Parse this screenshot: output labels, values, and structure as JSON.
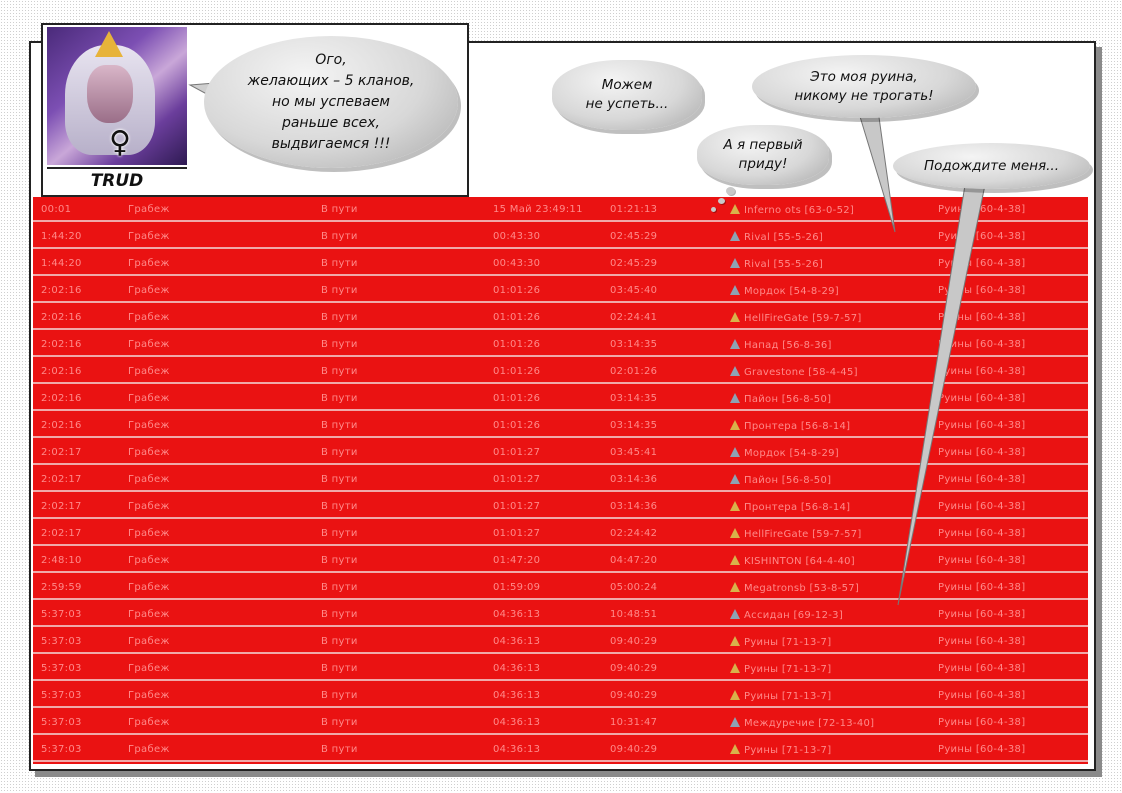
{
  "character": {
    "name": "TRUD",
    "gender_symbol": "♀"
  },
  "bubbles": {
    "main": [
      "Ого,",
      "желающих – 5 кланов,",
      "но мы успеваем",
      "раньше всех,",
      "выдвигаемся !!!"
    ],
    "cloud1": [
      "Можем",
      "не успеть..."
    ],
    "cloud2": [
      "А я первый",
      "приду!"
    ],
    "speech1": [
      "Это моя руина,",
      "никому не трогать!"
    ],
    "speech2": [
      "Подождите меня..."
    ]
  },
  "rows": [
    {
      "t": "00:01",
      "type": "Грабеж",
      "status": "В пути",
      "start": "15 Май 23:49:11",
      "arr": "01:21:13",
      "icon": "gold",
      "from": "Inferno ots [63-0-52]",
      "to": "Руины [60-4-38]"
    },
    {
      "t": "1:44:20",
      "type": "Грабеж",
      "status": "В пути",
      "start": "00:43:30",
      "arr": "02:45:29",
      "icon": "grey",
      "from": "Rival [55-5-26]",
      "to": "Руины [60-4-38]"
    },
    {
      "t": "1:44:20",
      "type": "Грабеж",
      "status": "В пути",
      "start": "00:43:30",
      "arr": "02:45:29",
      "icon": "grey",
      "from": "Rival [55-5-26]",
      "to": "Руины [60-4-38]"
    },
    {
      "t": "2:02:16",
      "type": "Грабеж",
      "status": "В пути",
      "start": "01:01:26",
      "arr": "03:45:40",
      "icon": "grey",
      "from": "Мордок [54-8-29]",
      "to": "Руины [60-4-38]"
    },
    {
      "t": "2:02:16",
      "type": "Грабеж",
      "status": "В пути",
      "start": "01:01:26",
      "arr": "02:24:41",
      "icon": "gold",
      "from": "HellFireGate [59-7-57]",
      "to": "Руины [60-4-38]"
    },
    {
      "t": "2:02:16",
      "type": "Грабеж",
      "status": "В пути",
      "start": "01:01:26",
      "arr": "03:14:35",
      "icon": "grey",
      "from": "Напад [56-8-36]",
      "to": "Руины [60-4-38]"
    },
    {
      "t": "2:02:16",
      "type": "Грабеж",
      "status": "В пути",
      "start": "01:01:26",
      "arr": "02:01:26",
      "icon": "grey",
      "from": "Gravestone [58-4-45]",
      "to": "Руины [60-4-38]"
    },
    {
      "t": "2:02:16",
      "type": "Грабеж",
      "status": "В пути",
      "start": "01:01:26",
      "arr": "03:14:35",
      "icon": "grey",
      "from": "Пайон [56-8-50]",
      "to": "Руины [60-4-38]"
    },
    {
      "t": "2:02:16",
      "type": "Грабеж",
      "status": "В пути",
      "start": "01:01:26",
      "arr": "03:14:35",
      "icon": "gold",
      "from": "Пронтера [56-8-14]",
      "to": "Руины [60-4-38]"
    },
    {
      "t": "2:02:17",
      "type": "Грабеж",
      "status": "В пути",
      "start": "01:01:27",
      "arr": "03:45:41",
      "icon": "grey",
      "from": "Мордок [54-8-29]",
      "to": "Руины [60-4-38]"
    },
    {
      "t": "2:02:17",
      "type": "Грабеж",
      "status": "В пути",
      "start": "01:01:27",
      "arr": "03:14:36",
      "icon": "grey",
      "from": "Пайон [56-8-50]",
      "to": "Руины [60-4-38]"
    },
    {
      "t": "2:02:17",
      "type": "Грабеж",
      "status": "В пути",
      "start": "01:01:27",
      "arr": "03:14:36",
      "icon": "gold",
      "from": "Пронтера [56-8-14]",
      "to": "Руины [60-4-38]"
    },
    {
      "t": "2:02:17",
      "type": "Грабеж",
      "status": "В пути",
      "start": "01:01:27",
      "arr": "02:24:42",
      "icon": "gold",
      "from": "HellFireGate [59-7-57]",
      "to": "Руины [60-4-38]"
    },
    {
      "t": "2:48:10",
      "type": "Грабеж",
      "status": "В пути",
      "start": "01:47:20",
      "arr": "04:47:20",
      "icon": "gold",
      "from": "KISHINTON [64-4-40]",
      "to": "Руины [60-4-38]"
    },
    {
      "t": "2:59:59",
      "type": "Грабеж",
      "status": "В пути",
      "start": "01:59:09",
      "arr": "05:00:24",
      "icon": "gold",
      "from": "Megatronsb [53-8-57]",
      "to": "Руины [60-4-38]"
    },
    {
      "t": "5:37:03",
      "type": "Грабеж",
      "status": "В пути",
      "start": "04:36:13",
      "arr": "10:48:51",
      "icon": "grey",
      "from": "Ассидан [69-12-3]",
      "to": "Руины [60-4-38]"
    },
    {
      "t": "5:37:03",
      "type": "Грабеж",
      "status": "В пути",
      "start": "04:36:13",
      "arr": "09:40:29",
      "icon": "gold",
      "from": "Руины [71-13-7]",
      "to": "Руины [60-4-38]"
    },
    {
      "t": "5:37:03",
      "type": "Грабеж",
      "status": "В пути",
      "start": "04:36:13",
      "arr": "09:40:29",
      "icon": "gold",
      "from": "Руины [71-13-7]",
      "to": "Руины [60-4-38]"
    },
    {
      "t": "5:37:03",
      "type": "Грабеж",
      "status": "В пути",
      "start": "04:36:13",
      "arr": "09:40:29",
      "icon": "gold",
      "from": "Руины [71-13-7]",
      "to": "Руины [60-4-38]"
    },
    {
      "t": "5:37:03",
      "type": "Грабеж",
      "status": "В пути",
      "start": "04:36:13",
      "arr": "10:31:47",
      "icon": "grey",
      "from": "Междуречие [72-13-40]",
      "to": "Руины [60-4-38]"
    },
    {
      "t": "5:37:03",
      "type": "Грабеж",
      "status": "В пути",
      "start": "04:36:13",
      "arr": "09:40:29",
      "icon": "gold",
      "from": "Руины [71-13-7]",
      "to": "Руины [60-4-38]"
    }
  ],
  "colors": {
    "table_bg": "#ea1212",
    "row_text": "#ff8a8a",
    "row_divider": "#f0a9a9",
    "gold_icon": "#d9b24a",
    "grey_icon": "#8ea2b4"
  }
}
